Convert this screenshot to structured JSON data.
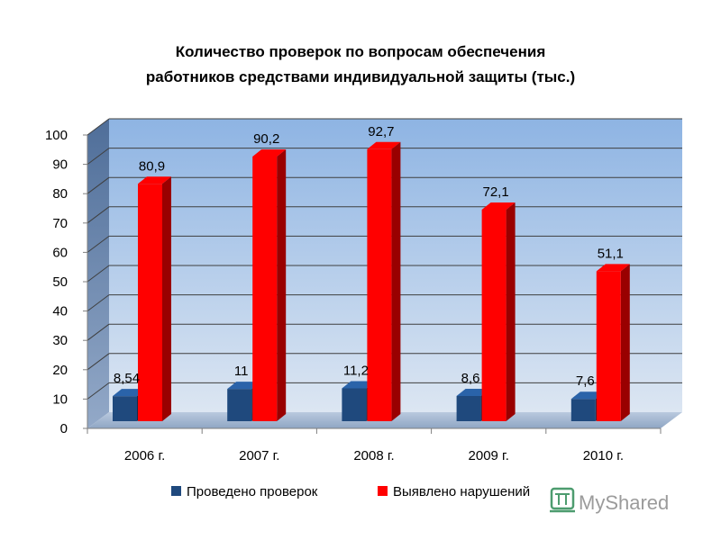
{
  "chart_data": {
    "type": "bar",
    "title_lines": [
      "Количество проверок по вопросам обеспечения",
      "работников средствами индивидуальной защиты (тыс.)"
    ],
    "categories": [
      "2006 г.",
      "2007 г.",
      "2008 г.",
      "2009 г.",
      "2010 г."
    ],
    "series": [
      {
        "name": "Проведено проверок",
        "values": [
          8.54,
          11,
          11.2,
          8.6,
          7.6
        ],
        "labels": [
          "8,54",
          "11",
          "11,2",
          "8,6",
          "7,6"
        ],
        "color": "#1f497d"
      },
      {
        "name": "Выявлено нарушений",
        "values": [
          80.9,
          90.2,
          92.7,
          72.1,
          51.1
        ],
        "labels": [
          "80,9",
          "90,2",
          "92,7",
          "72,1",
          "51,1"
        ],
        "color": "#ff0000"
      }
    ],
    "ylim": [
      0,
      100
    ],
    "yticks": [
      0,
      10,
      20,
      30,
      40,
      50,
      60,
      70,
      80,
      90,
      100
    ],
    "grid": true,
    "legend": "bottom",
    "style": "3d-column"
  },
  "watermark": {
    "text": "MyShared"
  }
}
